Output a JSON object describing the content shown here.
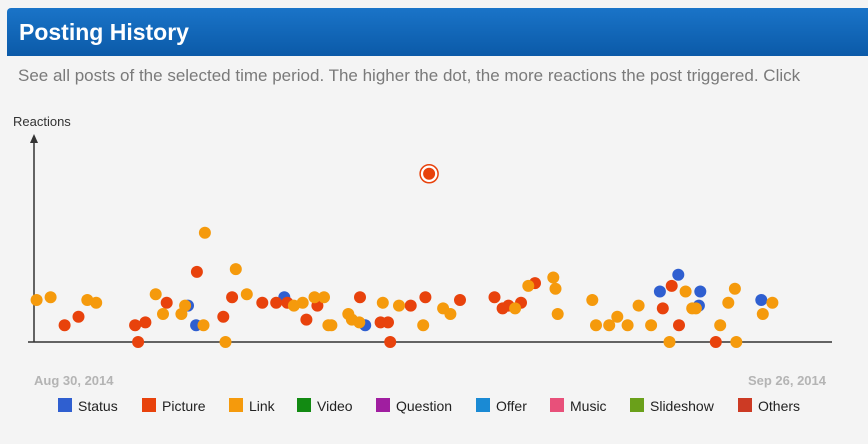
{
  "header": {
    "title": "Posting History"
  },
  "description": "See all posts of the selected time period. The higher the dot, the more reactions the post triggered. Click",
  "chart_data": {
    "type": "scatter",
    "ylabel": "Reactions",
    "x_start_label": "Aug 30, 2014",
    "x_end_label": "Sep 26, 2014",
    "legend": [
      {
        "name": "Status",
        "color": "#2f5fd0"
      },
      {
        "name": "Picture",
        "color": "#e8420c"
      },
      {
        "name": "Link",
        "color": "#f59a0c"
      },
      {
        "name": "Video",
        "color": "#128a12"
      },
      {
        "name": "Question",
        "color": "#a01ea0"
      },
      {
        "name": "Offer",
        "color": "#1a8ad4"
      },
      {
        "name": "Music",
        "color": "#e8507a"
      },
      {
        "name": "Slideshow",
        "color": "#6aa01a"
      },
      {
        "name": "Others",
        "color": "#cc3a24"
      }
    ],
    "series": [
      {
        "name": "Status",
        "points": [
          [
            0.181,
            13
          ],
          [
            0.192,
            6
          ],
          [
            0.312,
            16
          ],
          [
            0.422,
            6
          ],
          [
            0.823,
            18
          ],
          [
            0.848,
            24
          ],
          [
            0.876,
            13
          ],
          [
            0.878,
            18
          ],
          [
            0.961,
            15
          ]
        ]
      },
      {
        "name": "Picture",
        "points": [
          [
            0.013,
            6
          ],
          [
            0.032,
            9
          ],
          [
            0.109,
            6
          ],
          [
            0.113,
            0
          ],
          [
            0.123,
            7
          ],
          [
            0.152,
            14
          ],
          [
            0.193,
            25
          ],
          [
            0.229,
            9
          ],
          [
            0.241,
            16
          ],
          [
            0.282,
            14
          ],
          [
            0.301,
            14
          ],
          [
            0.316,
            14
          ],
          [
            0.342,
            8
          ],
          [
            0.357,
            13
          ],
          [
            0.415,
            16
          ],
          [
            0.443,
            7
          ],
          [
            0.453,
            7
          ],
          [
            0.456,
            0
          ],
          [
            0.484,
            13
          ],
          [
            0.504,
            16
          ],
          [
            0.509,
            60
          ],
          [
            0.551,
            15
          ],
          [
            0.598,
            16
          ],
          [
            0.609,
            12
          ],
          [
            0.617,
            13
          ],
          [
            0.634,
            14
          ],
          [
            0.653,
            21
          ],
          [
            0.827,
            12
          ],
          [
            0.839,
            20
          ],
          [
            0.849,
            6
          ],
          [
            0.899,
            0
          ]
        ]
      },
      {
        "name": "Link",
        "points": [
          [
            -0.025,
            15
          ],
          [
            -0.006,
            16
          ],
          [
            0.044,
            15
          ],
          [
            0.056,
            14
          ],
          [
            0.137,
            17
          ],
          [
            0.147,
            10
          ],
          [
            0.172,
            10
          ],
          [
            0.177,
            13
          ],
          [
            0.202,
            6
          ],
          [
            0.204,
            39
          ],
          [
            0.232,
            0
          ],
          [
            0.246,
            26
          ],
          [
            0.261,
            17
          ],
          [
            0.325,
            13
          ],
          [
            0.337,
            14
          ],
          [
            0.353,
            16
          ],
          [
            0.366,
            16
          ],
          [
            0.372,
            6
          ],
          [
            0.376,
            6
          ],
          [
            0.399,
            10
          ],
          [
            0.404,
            8
          ],
          [
            0.414,
            7
          ],
          [
            0.446,
            14
          ],
          [
            0.468,
            13
          ],
          [
            0.501,
            6
          ],
          [
            0.528,
            12
          ],
          [
            0.538,
            10
          ],
          [
            0.626,
            12
          ],
          [
            0.644,
            20
          ],
          [
            0.678,
            23
          ],
          [
            0.681,
            19
          ],
          [
            0.684,
            10
          ],
          [
            0.731,
            15
          ],
          [
            0.736,
            6
          ],
          [
            0.754,
            6
          ],
          [
            0.765,
            9
          ],
          [
            0.779,
            6
          ],
          [
            0.794,
            13
          ],
          [
            0.811,
            6
          ],
          [
            0.836,
            0
          ],
          [
            0.858,
            18
          ],
          [
            0.867,
            12
          ],
          [
            0.872,
            12
          ],
          [
            0.905,
            6
          ],
          [
            0.916,
            14
          ],
          [
            0.925,
            19
          ],
          [
            0.927,
            0
          ],
          [
            0.963,
            10
          ],
          [
            0.976,
            14
          ]
        ]
      },
      {
        "name": "Video",
        "points": []
      },
      {
        "name": "Question",
        "points": []
      },
      {
        "name": "Offer",
        "points": []
      },
      {
        "name": "Music",
        "points": []
      },
      {
        "name": "Slideshow",
        "points": []
      },
      {
        "name": "Others",
        "points": []
      }
    ],
    "highlighted": {
      "series": "Picture",
      "x": 0.509,
      "y": 60
    },
    "x_range": [
      0,
      1
    ],
    "y_range": [
      0,
      66
    ],
    "grid": false,
    "legend_position": "bottom"
  }
}
